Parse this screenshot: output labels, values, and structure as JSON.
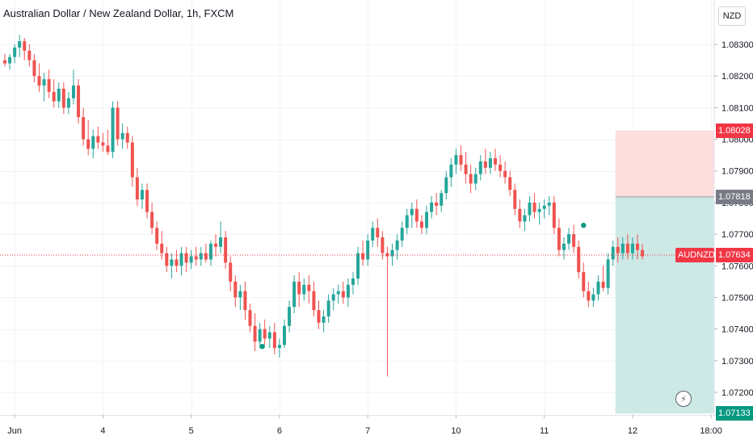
{
  "header": {
    "title": "Australian Dollar / New Zealand Dollar, 1h, FXCM"
  },
  "currency_button": "NZD",
  "colors": {
    "up": "#26a69a",
    "down": "#ef5350",
    "grid": "#f0f3fa",
    "stop_zone": "#fcdede",
    "target_zone": "#cde9e6",
    "entry_tag": "#787b86",
    "stop_tag": "#f23645",
    "target_tag": "#089981",
    "last_price_tag": "#f23645"
  },
  "price_tags": {
    "stop": "1.08028",
    "entry": "1.07818",
    "last_symbol": "AUDNZD",
    "last_price": "1.07634",
    "target": "1.07133"
  },
  "zap_icon": "⚡",
  "chart_data": {
    "type": "candlestick",
    "title": "Australian Dollar / New Zealand Dollar, 1h, FXCM",
    "symbol": "AUDNZD",
    "currency": "NZD",
    "y_ticks": [
      1.083,
      1.082,
      1.081,
      1.08,
      1.079,
      1.078,
      1.077,
      1.076,
      1.075,
      1.074,
      1.073,
      1.072
    ],
    "y_tick_labels": [
      "1.08300",
      "1.08200",
      "1.08100",
      "1.08000",
      "1.07900",
      "1.07800",
      "1.07700",
      "1.07600",
      "1.07500",
      "1.07400",
      "1.07300",
      "1.07200"
    ],
    "ylim": [
      1.0712,
      1.0836
    ],
    "x_tick_labels": [
      "Jun",
      "4",
      "5",
      "6",
      "7",
      "10",
      "11",
      "12",
      "18:00"
    ],
    "x_tick_candles": [
      2,
      20,
      38,
      56,
      74,
      92,
      110,
      128,
      144
    ],
    "last_price": 1.07634,
    "position": {
      "type": "short",
      "entry": 1.07818,
      "stop": 1.08028,
      "target": 1.07133,
      "start_candle": 124.5
    },
    "candles": [
      [
        1.0825,
        1.0827,
        1.0823,
        1.0824
      ],
      [
        1.0824,
        1.0827,
        1.0822,
        1.0826
      ],
      [
        1.0826,
        1.083,
        1.0824,
        1.0829
      ],
      [
        1.0829,
        1.0833,
        1.0826,
        1.0831
      ],
      [
        1.0831,
        1.0832,
        1.0825,
        1.0828
      ],
      [
        1.0828,
        1.083,
        1.0823,
        1.0825
      ],
      [
        1.0825,
        1.0827,
        1.0818,
        1.082
      ],
      [
        1.082,
        1.0824,
        1.0815,
        1.0817
      ],
      [
        1.0817,
        1.0821,
        1.0812,
        1.0819
      ],
      [
        1.0819,
        1.0822,
        1.0813,
        1.0815
      ],
      [
        1.0815,
        1.0819,
        1.081,
        1.0812
      ],
      [
        1.0812,
        1.0818,
        1.081,
        1.0816
      ],
      [
        1.0816,
        1.0818,
        1.0808,
        1.081
      ],
      [
        1.081,
        1.0815,
        1.0808,
        1.0813
      ],
      [
        1.0813,
        1.0822,
        1.0811,
        1.0817
      ],
      [
        1.0817,
        1.0819,
        1.0805,
        1.0807
      ],
      [
        1.0807,
        1.081,
        1.0798,
        1.08
      ],
      [
        1.08,
        1.0806,
        1.0795,
        1.0797
      ],
      [
        1.0797,
        1.0803,
        1.0794,
        1.0801
      ],
      [
        1.0801,
        1.0804,
        1.0797,
        1.0799
      ],
      [
        1.0799,
        1.0802,
        1.0796,
        1.0798
      ],
      [
        1.0798,
        1.0803,
        1.0795,
        1.0796
      ],
      [
        1.0796,
        1.0812,
        1.0794,
        1.081
      ],
      [
        1.081,
        1.0812,
        1.0798,
        1.08
      ],
      [
        1.08,
        1.0805,
        1.0797,
        1.0802
      ],
      [
        1.0802,
        1.0804,
        1.0797,
        1.0799
      ],
      [
        1.0799,
        1.0801,
        1.0785,
        1.0788
      ],
      [
        1.0788,
        1.0791,
        1.0779,
        1.0781
      ],
      [
        1.0781,
        1.0786,
        1.0778,
        1.0784
      ],
      [
        1.0784,
        1.0786,
        1.0775,
        1.0777
      ],
      [
        1.0777,
        1.078,
        1.077,
        1.0772
      ],
      [
        1.0772,
        1.0774,
        1.0765,
        1.0767
      ],
      [
        1.0767,
        1.0771,
        1.0762,
        1.0764
      ],
      [
        1.0764,
        1.0766,
        1.0758,
        1.076
      ],
      [
        1.076,
        1.0764,
        1.0756,
        1.0762
      ],
      [
        1.0762,
        1.0765,
        1.0758,
        1.076
      ],
      [
        1.076,
        1.0766,
        1.0757,
        1.0764
      ],
      [
        1.0764,
        1.0766,
        1.0758,
        1.0761
      ],
      [
        1.0761,
        1.0765,
        1.0759,
        1.0763
      ],
      [
        1.0763,
        1.0766,
        1.076,
        1.0762
      ],
      [
        1.0762,
        1.0766,
        1.076,
        1.0764
      ],
      [
        1.0764,
        1.0767,
        1.0761,
        1.0762
      ],
      [
        1.0762,
        1.0768,
        1.076,
        1.0767
      ],
      [
        1.0767,
        1.077,
        1.0763,
        1.0766
      ],
      [
        1.0766,
        1.0774,
        1.0764,
        1.0769
      ],
      [
        1.0769,
        1.0771,
        1.0759,
        1.0761
      ],
      [
        1.0761,
        1.0763,
        1.0752,
        1.0755
      ],
      [
        1.0755,
        1.0757,
        1.0747,
        1.075
      ],
      [
        1.075,
        1.0754,
        1.0746,
        1.0752
      ],
      [
        1.0752,
        1.0755,
        1.0743,
        1.0746
      ],
      [
        1.0746,
        1.0748,
        1.0739,
        1.0741
      ],
      [
        1.0741,
        1.0745,
        1.0733,
        1.0736
      ],
      [
        1.0736,
        1.0742,
        1.0734,
        1.074
      ],
      [
        1.074,
        1.0743,
        1.0735,
        1.0737
      ],
      [
        1.0737,
        1.0741,
        1.0734,
        1.0739
      ],
      [
        1.0739,
        1.0742,
        1.0732,
        1.0734
      ],
      [
        1.0734,
        1.0737,
        1.0731,
        1.0735
      ],
      [
        1.0735,
        1.0743,
        1.0734,
        1.0741
      ],
      [
        1.0741,
        1.0749,
        1.0739,
        1.0747
      ],
      [
        1.0747,
        1.0757,
        1.0745,
        1.0755
      ],
      [
        1.0755,
        1.0758,
        1.0747,
        1.0751
      ],
      [
        1.0751,
        1.0756,
        1.0749,
        1.0754
      ],
      [
        1.0754,
        1.0757,
        1.0748,
        1.0752
      ],
      [
        1.0752,
        1.0755,
        1.0744,
        1.0746
      ],
      [
        1.0746,
        1.0749,
        1.074,
        1.0742
      ],
      [
        1.0742,
        1.0746,
        1.0739,
        1.0744
      ],
      [
        1.0744,
        1.0751,
        1.0742,
        1.0749
      ],
      [
        1.0749,
        1.0753,
        1.0746,
        1.0751
      ],
      [
        1.0751,
        1.0754,
        1.0748,
        1.0752
      ],
      [
        1.0752,
        1.0755,
        1.0748,
        1.075
      ],
      [
        1.075,
        1.0756,
        1.0747,
        1.0754
      ],
      [
        1.0754,
        1.0758,
        1.0751,
        1.0756
      ],
      [
        1.0756,
        1.0766,
        1.0754,
        1.0764
      ],
      [
        1.0764,
        1.0768,
        1.076,
        1.0762
      ],
      [
        1.0762,
        1.077,
        1.076,
        1.0768
      ],
      [
        1.0768,
        1.0774,
        1.0766,
        1.0772
      ],
      [
        1.0772,
        1.0775,
        1.0766,
        1.0769
      ],
      [
        1.0769,
        1.0771,
        1.0762,
        1.0764
      ],
      [
        1.0764,
        1.0766,
        1.0725,
        1.0763
      ],
      [
        1.0763,
        1.0767,
        1.076,
        1.0765
      ],
      [
        1.0765,
        1.077,
        1.0762,
        1.0768
      ],
      [
        1.0768,
        1.0774,
        1.0766,
        1.0772
      ],
      [
        1.0772,
        1.0778,
        1.077,
        1.0776
      ],
      [
        1.0776,
        1.078,
        1.0772,
        1.0778
      ],
      [
        1.0778,
        1.0781,
        1.0772,
        1.0774
      ],
      [
        1.0774,
        1.0776,
        1.077,
        1.0772
      ],
      [
        1.0772,
        1.0779,
        1.077,
        1.0777
      ],
      [
        1.0777,
        1.0782,
        1.0775,
        1.078
      ],
      [
        1.078,
        1.0783,
        1.0776,
        1.0779
      ],
      [
        1.0779,
        1.0784,
        1.0777,
        1.0783
      ],
      [
        1.0783,
        1.079,
        1.0781,
        1.0788
      ],
      [
        1.0788,
        1.0794,
        1.0785,
        1.0792
      ],
      [
        1.0792,
        1.0797,
        1.0789,
        1.0795
      ],
      [
        1.0795,
        1.0798,
        1.079,
        1.0792
      ],
      [
        1.0792,
        1.0796,
        1.0786,
        1.0789
      ],
      [
        1.0789,
        1.0792,
        1.0783,
        1.0786
      ],
      [
        1.0786,
        1.0791,
        1.0784,
        1.0789
      ],
      [
        1.0789,
        1.0795,
        1.0787,
        1.0793
      ],
      [
        1.0793,
        1.0797,
        1.0789,
        1.0791
      ],
      [
        1.0791,
        1.0796,
        1.0789,
        1.0794
      ],
      [
        1.0794,
        1.0797,
        1.079,
        1.0792
      ],
      [
        1.0792,
        1.0795,
        1.0788,
        1.079
      ],
      [
        1.079,
        1.0793,
        1.0786,
        1.0788
      ],
      [
        1.0788,
        1.079,
        1.0782,
        1.0784
      ],
      [
        1.0784,
        1.0786,
        1.0776,
        1.0778
      ],
      [
        1.0778,
        1.0781,
        1.0772,
        1.0774
      ],
      [
        1.0774,
        1.0778,
        1.0771,
        1.0776
      ],
      [
        1.0776,
        1.0782,
        1.0774,
        1.078
      ],
      [
        1.078,
        1.0783,
        1.0775,
        1.0777
      ],
      [
        1.0777,
        1.078,
        1.0773,
        1.0778
      ],
      [
        1.0778,
        1.0781,
        1.0775,
        1.0779
      ],
      [
        1.0779,
        1.0782,
        1.0776,
        1.078
      ],
      [
        1.078,
        1.0782,
        1.077,
        1.0772
      ],
      [
        1.0772,
        1.0775,
        1.0763,
        1.0765
      ],
      [
        1.0765,
        1.0769,
        1.0762,
        1.0767
      ],
      [
        1.0767,
        1.0772,
        1.0765,
        1.077
      ],
      [
        1.077,
        1.0773,
        1.0764,
        1.0766
      ],
      [
        1.0766,
        1.0768,
        1.0756,
        1.0758
      ],
      [
        1.0758,
        1.0761,
        1.075,
        1.0752
      ],
      [
        1.0752,
        1.0755,
        1.0747,
        1.0749
      ],
      [
        1.0749,
        1.0753,
        1.0747,
        1.0751
      ],
      [
        1.0751,
        1.0757,
        1.0749,
        1.0755
      ],
      [
        1.0755,
        1.076,
        1.0752,
        1.0753
      ],
      [
        1.0753,
        1.0764,
        1.0751,
        1.0762
      ],
      [
        1.0762,
        1.0768,
        1.076,
        1.0766
      ],
      [
        1.0766,
        1.0769,
        1.0761,
        1.0764
      ],
      [
        1.0764,
        1.0769,
        1.0762,
        1.0767
      ],
      [
        1.0767,
        1.077,
        1.0762,
        1.0764
      ],
      [
        1.0764,
        1.0769,
        1.0762,
        1.0767
      ],
      [
        1.0767,
        1.077,
        1.0762,
        1.0765
      ],
      [
        1.0765,
        1.0767,
        1.0762,
        1.0763
      ]
    ]
  }
}
